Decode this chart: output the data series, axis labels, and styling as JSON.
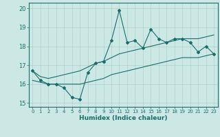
{
  "xlabel": "Humidex (Indice chaleur)",
  "ylabel": "",
  "bg_color": "#cce8e5",
  "line_color": "#1a6b6b",
  "grid_color": "#aed0cc",
  "x_data": [
    0,
    1,
    2,
    3,
    4,
    5,
    6,
    7,
    8,
    9,
    10,
    11,
    12,
    13,
    14,
    15,
    16,
    17,
    18,
    19,
    20,
    21,
    22,
    23
  ],
  "y_main": [
    16.7,
    16.2,
    16.0,
    16.0,
    15.8,
    15.3,
    15.2,
    16.6,
    17.1,
    17.2,
    18.3,
    19.9,
    18.2,
    18.3,
    17.9,
    18.9,
    18.4,
    18.2,
    18.4,
    18.4,
    18.2,
    17.7,
    18.0,
    17.6
  ],
  "y_upper": [
    16.7,
    16.4,
    16.3,
    16.4,
    16.5,
    16.6,
    16.7,
    16.9,
    17.1,
    17.2,
    17.4,
    17.6,
    17.7,
    17.8,
    17.9,
    18.0,
    18.1,
    18.2,
    18.3,
    18.4,
    18.4,
    18.4,
    18.5,
    18.6
  ],
  "y_lower": [
    16.2,
    16.1,
    16.0,
    16.0,
    16.0,
    16.0,
    16.0,
    16.1,
    16.2,
    16.3,
    16.5,
    16.6,
    16.7,
    16.8,
    16.9,
    17.0,
    17.1,
    17.2,
    17.3,
    17.4,
    17.4,
    17.4,
    17.5,
    17.6
  ],
  "ylim": [
    14.8,
    20.3
  ],
  "yticks": [
    15,
    16,
    17,
    18,
    19,
    20
  ],
  "xticks": [
    0,
    1,
    2,
    3,
    4,
    5,
    6,
    7,
    8,
    9,
    10,
    11,
    12,
    13,
    14,
    15,
    16,
    17,
    18,
    19,
    20,
    21,
    22,
    23
  ]
}
